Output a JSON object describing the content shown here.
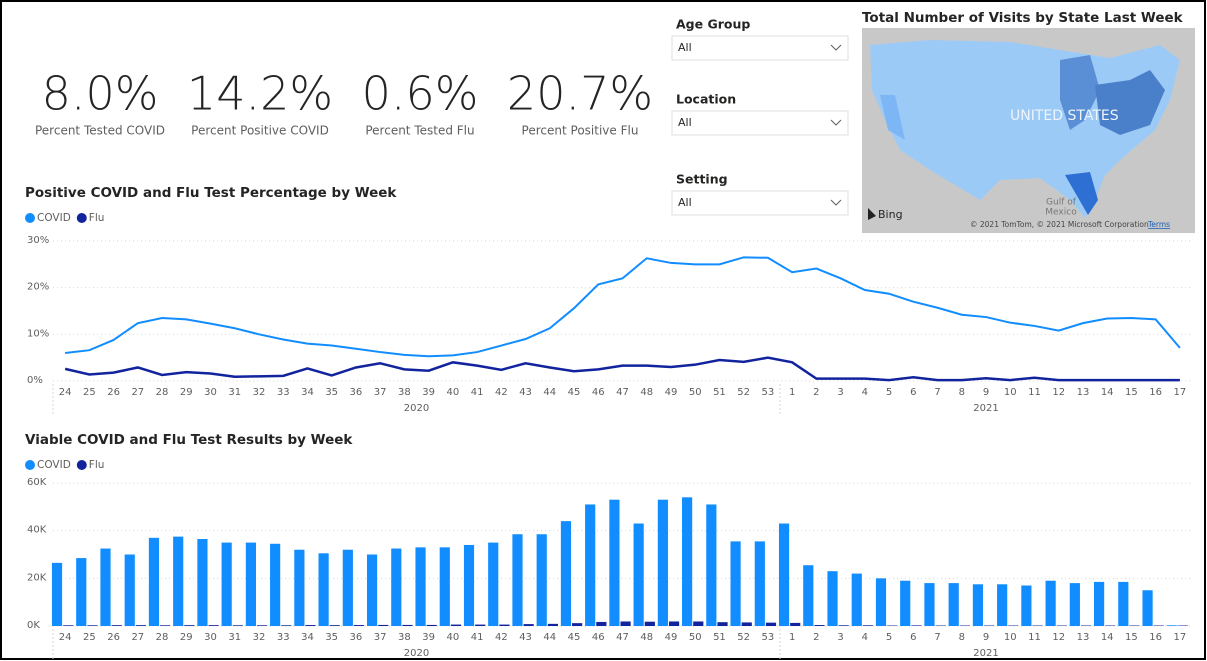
{
  "kpis": [
    {
      "value": "8.0%",
      "label": "Percent Tested COVID"
    },
    {
      "value": "14.2%",
      "label": "Percent Positive COVID"
    },
    {
      "value": "0.6%",
      "label": "Percent Tested Flu"
    },
    {
      "value": "20.7%",
      "label": "Percent Positive Flu"
    }
  ],
  "filters": [
    {
      "label": "Age Group",
      "selected": "All"
    },
    {
      "label": "Location",
      "selected": "All"
    },
    {
      "label": "Setting",
      "selected": "All"
    }
  ],
  "map": {
    "title": "Total Number of Visits by State Last Week",
    "country_label": "UNITED STATES",
    "sea_label": [
      "Gulf of",
      "Mexico"
    ],
    "provider": "Bing",
    "credits": "© 2021 TomTom, © 2021 Microsoft Corporation",
    "terms": "Terms"
  },
  "chart_data": [
    {
      "type": "line",
      "title": "Positive COVID and Flu Test Percentage by Week",
      "category_groups": [
        {
          "label": "2020",
          "categories": [
            "24",
            "25",
            "26",
            "27",
            "28",
            "29",
            "30",
            "31",
            "32",
            "33",
            "34",
            "35",
            "36",
            "37",
            "38",
            "39",
            "40",
            "41",
            "42",
            "43",
            "44",
            "45",
            "46",
            "47",
            "48",
            "49",
            "50",
            "51",
            "52",
            "53"
          ]
        },
        {
          "label": "2021",
          "categories": [
            "1",
            "2",
            "3",
            "4",
            "5",
            "6",
            "7",
            "8",
            "9",
            "10",
            "11",
            "12",
            "13",
            "14",
            "15",
            "16",
            "17"
          ]
        }
      ],
      "series": [
        {
          "name": "COVID",
          "color": "#118dff",
          "values": [
            6.0,
            6.6,
            8.8,
            12.4,
            13.5,
            13.2,
            12.3,
            11.3,
            10.0,
            8.9,
            8.0,
            7.6,
            6.9,
            6.2,
            5.6,
            5.3,
            5.5,
            6.2,
            7.6,
            9.0,
            11.3,
            15.6,
            20.7,
            22.0,
            26.3,
            25.3,
            25.0,
            25.0,
            26.5,
            26.4,
            23.3,
            24.1,
            22.0,
            19.5,
            18.7,
            17.0,
            15.7,
            14.2,
            13.7,
            12.5,
            11.8,
            10.8,
            12.4,
            13.4,
            13.5,
            13.2,
            7.1
          ]
        },
        {
          "name": "Flu",
          "color": "#12239e",
          "values": [
            2.6,
            1.4,
            1.8,
            2.9,
            1.3,
            1.9,
            1.6,
            0.9,
            1.0,
            1.1,
            2.7,
            1.2,
            2.9,
            3.8,
            2.5,
            2.2,
            4.0,
            3.3,
            2.4,
            3.8,
            2.9,
            2.1,
            2.5,
            3.3,
            3.3,
            3.0,
            3.5,
            4.5,
            4.1,
            5.0,
            4.0,
            0.5,
            0.5,
            0.5,
            0.2,
            0.8,
            0.2,
            0.2,
            0.6,
            0.2,
            0.7,
            0.2,
            0.2,
            0.2,
            0.2,
            0.2,
            0.2
          ]
        }
      ],
      "ylim": [
        0,
        30
      ],
      "yticks": [
        {
          "value": 0,
          "label": "0%"
        },
        {
          "value": 10,
          "label": "10%"
        },
        {
          "value": 20,
          "label": "20%"
        },
        {
          "value": 30,
          "label": "30%"
        }
      ],
      "grid": true
    },
    {
      "type": "bar",
      "title": "Viable COVID and Flu Test Results by Week",
      "category_groups": [
        {
          "label": "2020",
          "categories": [
            "24",
            "25",
            "26",
            "27",
            "28",
            "29",
            "30",
            "31",
            "32",
            "33",
            "34",
            "35",
            "36",
            "37",
            "38",
            "39",
            "40",
            "41",
            "42",
            "43",
            "44",
            "45",
            "46",
            "47",
            "48",
            "49",
            "50",
            "51",
            "52",
            "53"
          ]
        },
        {
          "label": "2021",
          "categories": [
            "1",
            "2",
            "3",
            "4",
            "5",
            "6",
            "7",
            "8",
            "9",
            "10",
            "11",
            "12",
            "13",
            "14",
            "15",
            "16",
            "17"
          ]
        }
      ],
      "series": [
        {
          "name": "COVID",
          "color": "#118dff",
          "values": [
            26500,
            28500,
            32500,
            30000,
            37000,
            37500,
            36500,
            35000,
            35000,
            34500,
            32000,
            30500,
            32000,
            30000,
            32500,
            33000,
            33000,
            34000,
            35000,
            38500,
            38500,
            44000,
            51000,
            53000,
            43000,
            53000,
            54000,
            51000,
            35500,
            35500,
            43000,
            25500,
            23000,
            22000,
            20000,
            19000,
            18000,
            18000,
            17500,
            17500,
            17000,
            19000,
            18000,
            18500,
            18500,
            15000,
            300
          ]
        },
        {
          "name": "Flu",
          "color": "#12239e",
          "values": [
            300,
            300,
            350,
            350,
            300,
            350,
            350,
            300,
            300,
            300,
            400,
            350,
            400,
            450,
            450,
            450,
            600,
            600,
            600,
            800,
            900,
            1200,
            1700,
            1900,
            1800,
            1900,
            1900,
            1600,
            1500,
            1400,
            1300,
            400,
            300,
            300,
            200,
            250,
            200,
            200,
            200,
            200,
            200,
            200,
            200,
            200,
            200,
            200,
            200
          ]
        }
      ],
      "ylim": [
        0,
        60000
      ],
      "yticks": [
        {
          "value": 0,
          "label": "0K"
        },
        {
          "value": 20000,
          "label": "20K"
        },
        {
          "value": 40000,
          "label": "40K"
        },
        {
          "value": 60000,
          "label": "60K"
        }
      ],
      "grid": true
    }
  ]
}
